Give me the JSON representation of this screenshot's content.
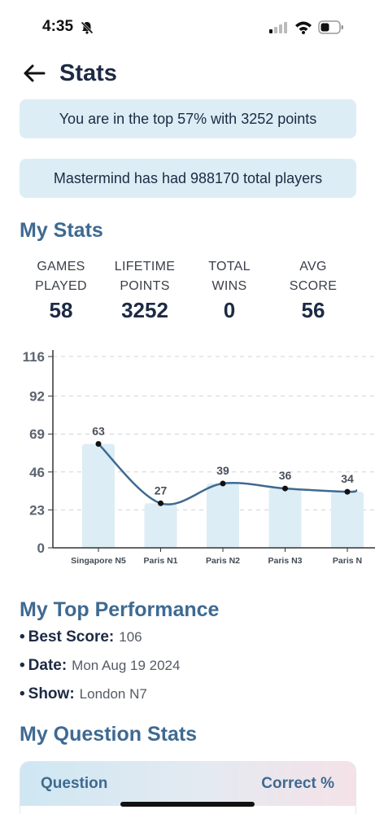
{
  "status_bar": {
    "time": "4:35",
    "icons": [
      "bell-slash-icon",
      "signal-icon",
      "wifi-icon",
      "battery-icon"
    ]
  },
  "header": {
    "title": "Stats",
    "back_icon": "back-arrow-icon"
  },
  "info": {
    "rank_text": "You are in the top 57% with 3252 points",
    "players_text": "Mastermind has had 988170 total players"
  },
  "my_stats": {
    "title": "My Stats",
    "items": [
      {
        "label_line1": "GAMES",
        "label_line2": "PLAYED",
        "value": "58"
      },
      {
        "label_line1": "LIFETIME",
        "label_line2": "POINTS",
        "value": "3252"
      },
      {
        "label_line1": "TOTAL",
        "label_line2": "WINS",
        "value": "0"
      },
      {
        "label_line1": "AVG",
        "label_line2": "SCORE",
        "value": "56"
      }
    ]
  },
  "chart_data": {
    "type": "bar",
    "categories": [
      "Singapore N5",
      "Paris N1",
      "Paris N2",
      "Paris N3",
      "Paris N"
    ],
    "values": [
      63,
      27,
      39,
      36,
      34
    ],
    "yticks": [
      0,
      23,
      46,
      69,
      92,
      116
    ],
    "ylim": [
      0,
      116
    ],
    "grid": true,
    "overlay": "smooth-line",
    "title": "",
    "xlabel": "",
    "ylabel": "",
    "colors": {
      "bar": "#dcedf5",
      "line": "#3e6a92",
      "point": "#111111",
      "grid": "#cfd4da",
      "axis": "#333333"
    }
  },
  "top_performance": {
    "title": "My Top Performance",
    "items": [
      {
        "label": "Best Score:",
        "value": "106"
      },
      {
        "label": "Date:",
        "value": "Mon Aug 19 2024"
      },
      {
        "label": "Show:",
        "value": "London N7"
      }
    ]
  },
  "question_stats": {
    "title": "My Question Stats",
    "columns": [
      "Question",
      "Correct %"
    ]
  },
  "colors": {
    "accent": "#3e6a92",
    "info_bg": "#dcedf5",
    "text": "#1d2a44"
  }
}
